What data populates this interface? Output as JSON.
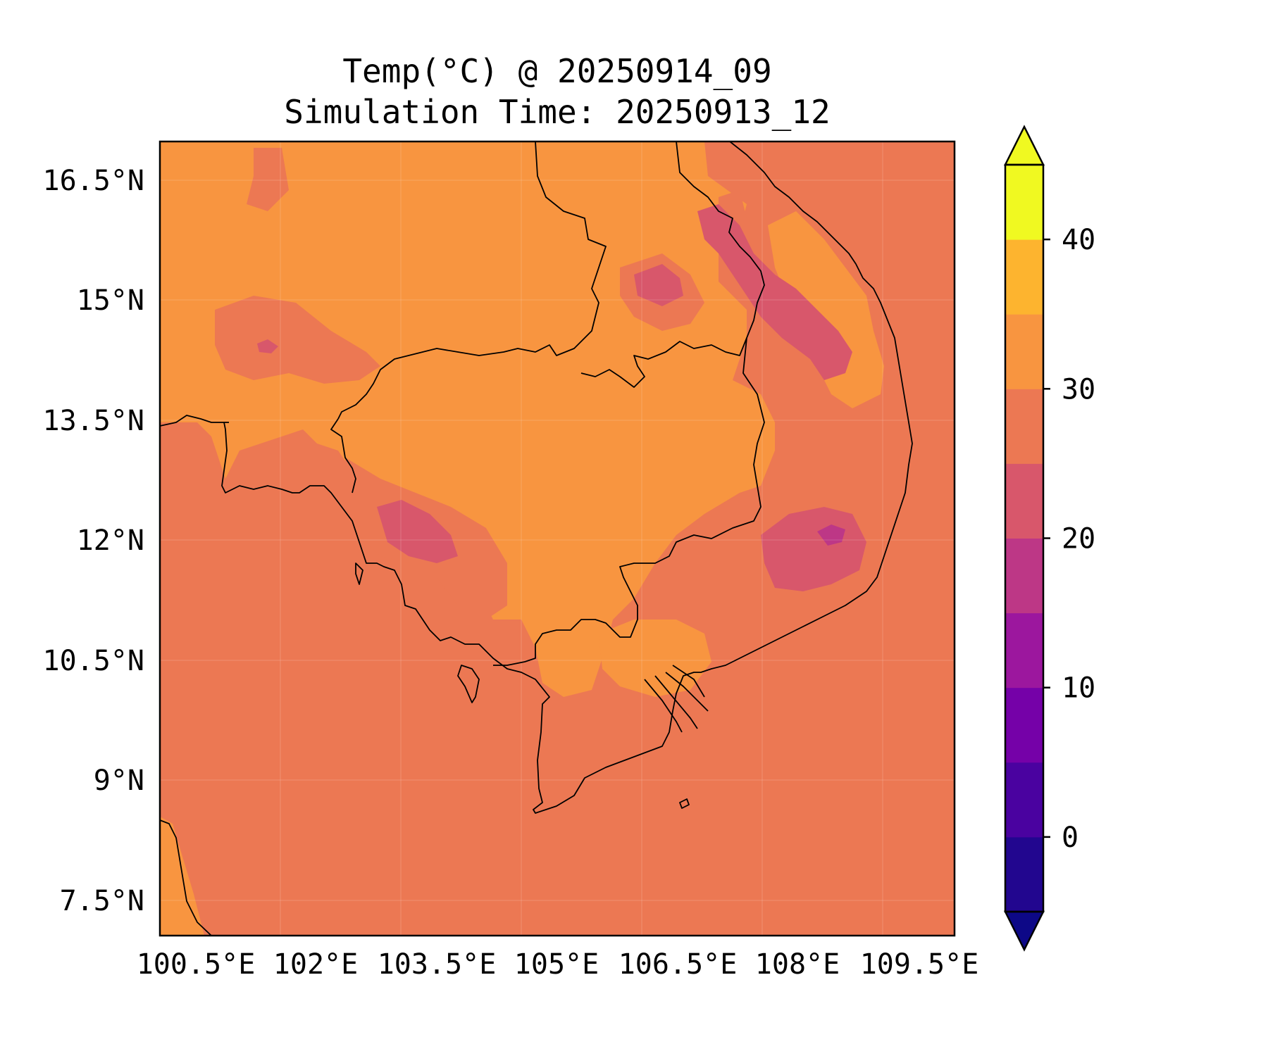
{
  "title": {
    "line1": "Temp(°C) @ 20250914_09",
    "line2": "Simulation Time: 20250913_12"
  },
  "chart_data": {
    "type": "heatmap",
    "variable": "Temp(°C)",
    "valid_time": "20250914_09",
    "simulation_time": "20250913_12",
    "x_axis": {
      "ticks": [
        100.5,
        102,
        103.5,
        105,
        106.5,
        108,
        109.5
      ],
      "tick_labels": [
        "100.5°E",
        "102°E",
        "103.5°E",
        "105°E",
        "106.5°E",
        "108°E",
        "109.5°E"
      ],
      "range": [
        100.5,
        110.4
      ]
    },
    "y_axis": {
      "ticks": [
        7.5,
        9,
        10.5,
        12,
        13.5,
        15,
        16.5
      ],
      "tick_labels": [
        "7.5°N",
        "9°N",
        "10.5°N",
        "12°N",
        "13.5°N",
        "15°N",
        "16.5°N"
      ],
      "range": [
        7.1,
        17.0
      ]
    },
    "grid": true,
    "colorbar": {
      "levels": [
        -5,
        0,
        5,
        10,
        15,
        20,
        25,
        30,
        35,
        40,
        45
      ],
      "colors": [
        "#22068f",
        "#4a02a0",
        "#7501a8",
        "#9c179e",
        "#bd3786",
        "#d8576b",
        "#ec7853",
        "#f89540",
        "#fdb42f",
        "#f0f921"
      ],
      "extend_min_color": "#0d0887",
      "extend_max_color": "#f0f921",
      "ticks": [
        0,
        10,
        20,
        30,
        40
      ],
      "tick_labels": [
        "0",
        "10",
        "20",
        "30",
        "40"
      ],
      "extend": "both"
    },
    "field_summary": {
      "ocean_and_south_band": "25-30",
      "inland_thailand_cambodia_laos": "30-35",
      "vietnam_highlands": "20-25",
      "coldest_pockets": "15-20"
    }
  }
}
